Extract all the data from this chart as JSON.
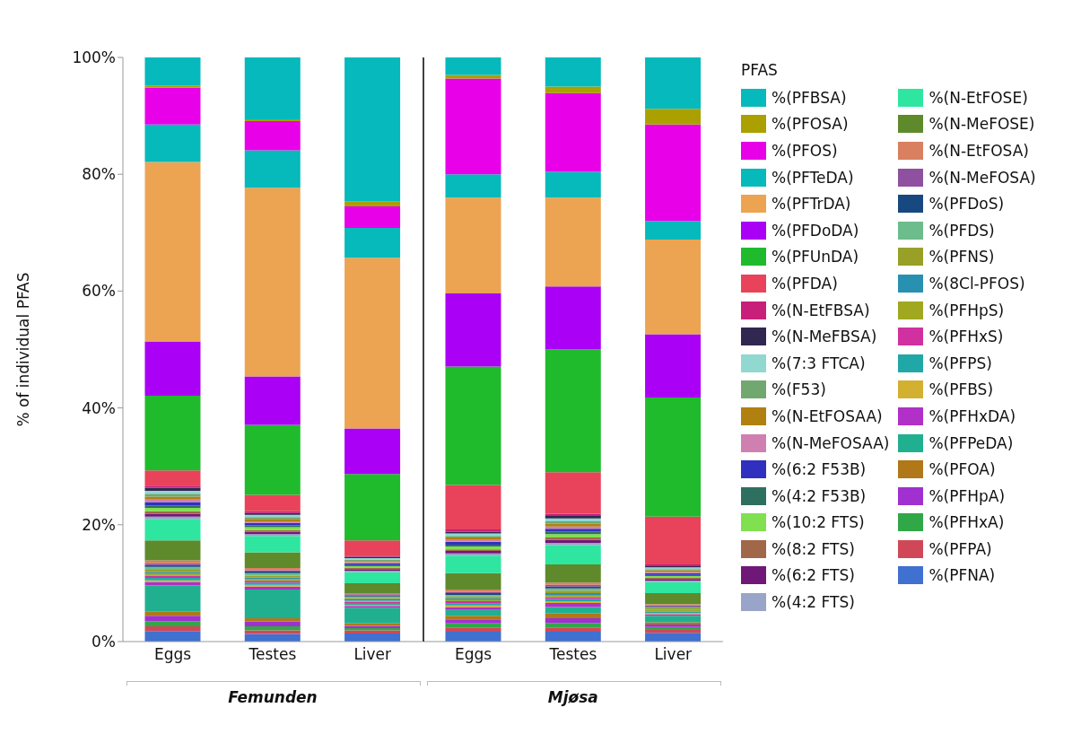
{
  "chart_data": [
    {
      "type": "bar",
      "stacked": true,
      "ylabel": "% of individual PFAS",
      "xlabel": "Femunden",
      "legend_title": "PFAS",
      "legend": "right",
      "categories": [
        "Eggs",
        "Testes",
        "Liver"
      ],
      "ylim": [
        0,
        100
      ],
      "yticks": [
        {
          "value": 0,
          "label": "0%"
        },
        {
          "value": 20,
          "label": "20%"
        },
        {
          "value": 40,
          "label": "40%"
        },
        {
          "value": 60,
          "label": "60%"
        },
        {
          "value": 80,
          "label": "80%"
        },
        {
          "value": 100,
          "label": "100%"
        }
      ],
      "series": [
        {
          "name": "%(PFNA)",
          "color": "#4070d0",
          "values": [
            1.8,
            1.3,
            1.4
          ]
        },
        {
          "name": "%(PFPA)",
          "color": "#d04858",
          "values": [
            0.8,
            0.6,
            0.5
          ]
        },
        {
          "name": "%(PFHxA)",
          "color": "#30a848",
          "values": [
            0.9,
            0.7,
            0.4
          ]
        },
        {
          "name": "%(PFHpA)",
          "color": "#a030d0",
          "values": [
            0.9,
            0.8,
            0.4
          ]
        },
        {
          "name": "%(PFOA)",
          "color": "#b07818",
          "values": [
            0.8,
            0.6,
            0.4
          ]
        },
        {
          "name": "%(PFPeDA)",
          "color": "#20b090",
          "values": [
            4.4,
            4.9,
            2.7
          ]
        },
        {
          "name": "%(PFHxDA)",
          "color": "#b030c8",
          "values": [
            0.6,
            0.5,
            0.3
          ]
        },
        {
          "name": "%(PFBS)",
          "color": "#d4b030",
          "values": [
            0.3,
            0.3,
            0.2
          ]
        },
        {
          "name": "%(PFPS)",
          "color": "#20a8a8",
          "values": [
            0.4,
            0.4,
            0.3
          ]
        },
        {
          "name": "%(PFHxS)",
          "color": "#d030a0",
          "values": [
            0.4,
            0.3,
            0.2
          ]
        },
        {
          "name": "%(PFHpS)",
          "color": "#a0a820",
          "values": [
            0.3,
            0.3,
            0.2
          ]
        },
        {
          "name": "%(8Cl-PFOS)",
          "color": "#2890b0",
          "values": [
            0.3,
            0.3,
            0.2
          ]
        },
        {
          "name": "%(PFNS)",
          "color": "#98a028",
          "values": [
            0.4,
            0.3,
            0.2
          ]
        },
        {
          "name": "%(PFDS)",
          "color": "#6cbc8c",
          "values": [
            0.5,
            0.4,
            0.3
          ]
        },
        {
          "name": "%(PFDoS)",
          "color": "#184880",
          "values": [
            0.3,
            0.3,
            0.2
          ]
        },
        {
          "name": "%(N-MeFOSA)",
          "color": "#9050a0",
          "values": [
            0.3,
            0.2,
            0.2
          ]
        },
        {
          "name": "%(N-EtFOSA)",
          "color": "#d88060",
          "values": [
            0.5,
            0.4,
            0.2
          ]
        },
        {
          "name": "%(N-MeFOSE)",
          "color": "#5e8a2c",
          "values": [
            3.4,
            2.7,
            1.7
          ]
        },
        {
          "name": "%(N-EtFOSE)",
          "color": "#2ee6a0",
          "values": [
            3.7,
            2.8,
            1.9
          ]
        },
        {
          "name": "%(4:2 FTS)",
          "color": "#98a4c8",
          "values": [
            0.4,
            0.3,
            0.2
          ]
        },
        {
          "name": "%(6:2 FTS)",
          "color": "#701878",
          "values": [
            0.5,
            0.4,
            0.3
          ]
        },
        {
          "name": "%(8:2 FTS)",
          "color": "#a06848",
          "values": [
            0.4,
            0.3,
            0.2
          ]
        },
        {
          "name": "%(10:2 FTS)",
          "color": "#80e050",
          "values": [
            0.6,
            0.5,
            0.3
          ]
        },
        {
          "name": "%(4:2 F53B)",
          "color": "#2e7060",
          "values": [
            0.4,
            0.3,
            0.2
          ]
        },
        {
          "name": "%(6:2 F53B)",
          "color": "#3030c0",
          "values": [
            0.6,
            0.4,
            0.3
          ]
        },
        {
          "name": "%(N-MeFOSAA)",
          "color": "#d080b0",
          "values": [
            0.4,
            0.3,
            0.2
          ]
        },
        {
          "name": "%(N-EtFOSAA)",
          "color": "#b08010",
          "values": [
            0.5,
            0.4,
            0.2
          ]
        },
        {
          "name": "%(F53)",
          "color": "#70a870",
          "values": [
            0.5,
            0.3,
            0.2
          ]
        },
        {
          "name": "%(7:3 FTCA)",
          "color": "#90d8d0",
          "values": [
            0.5,
            0.4,
            0.3
          ]
        },
        {
          "name": "%(N-MeFBSA)",
          "color": "#302850",
          "values": [
            0.5,
            0.3,
            0.2
          ]
        },
        {
          "name": "%(N-EtFBSA)",
          "color": "#c8207a",
          "values": [
            0.4,
            0.3,
            0.2
          ]
        },
        {
          "name": "%(PFDA)",
          "color": "#e8435a",
          "values": [
            2.6,
            2.8,
            2.6
          ]
        },
        {
          "name": "%(PFUnDA)",
          "color": "#1fbb2c",
          "values": [
            12.8,
            12.0,
            11.4
          ]
        },
        {
          "name": "%(PFDoDA)",
          "color": "#aa00f5",
          "values": [
            9.3,
            8.3,
            7.8
          ]
        },
        {
          "name": "%(PFTrDA)",
          "color": "#eca453",
          "values": [
            30.7,
            32.3,
            29.2
          ]
        },
        {
          "name": "%(PFTeDA)",
          "color": "#06b9bb",
          "values": [
            6.4,
            6.4,
            5.1
          ]
        },
        {
          "name": "%(PFOS)",
          "color": "#e800e8",
          "values": [
            6.3,
            5.0,
            3.7
          ]
        },
        {
          "name": "%(PFOSA)",
          "color": "#aaa000",
          "values": [
            0.4,
            0.3,
            0.9
          ]
        },
        {
          "name": "%(PFBSA)",
          "color": "#05b9bc",
          "values": [
            4.8,
            10.6,
            24.6
          ]
        }
      ]
    },
    {
      "type": "bar",
      "stacked": true,
      "xlabel": "Mjøsa",
      "tick_labels": "x",
      "categories": [
        "Eggs",
        "Testes",
        "Liver"
      ],
      "ylim": [
        0,
        100
      ],
      "series": [
        {
          "color": "#4070d0",
          "values": [
            1.7,
            1.7,
            1.5
          ]
        },
        {
          "color": "#d04858",
          "values": [
            0.7,
            0.7,
            0.5
          ]
        },
        {
          "color": "#30a848",
          "values": [
            0.7,
            0.8,
            0.5
          ]
        },
        {
          "color": "#a030d0",
          "values": [
            0.7,
            0.8,
            0.4
          ]
        },
        {
          "color": "#b07818",
          "values": [
            0.6,
            0.8,
            0.4
          ]
        },
        {
          "color": "#20b090",
          "values": [
            1.0,
            1.1,
            1.1
          ]
        },
        {
          "color": "#b030c8",
          "values": [
            0.5,
            0.7,
            0.3
          ]
        },
        {
          "color": "#d4b030",
          "values": [
            0.3,
            0.3,
            0.2
          ]
        },
        {
          "color": "#20a8a8",
          "values": [
            0.3,
            0.4,
            0.2
          ]
        },
        {
          "color": "#d030a0",
          "values": [
            0.4,
            0.3,
            0.1
          ]
        },
        {
          "color": "#a0a820",
          "values": [
            0.2,
            0.4,
            0.2
          ]
        },
        {
          "color": "#2890b0",
          "values": [
            0.3,
            0.3,
            0.1
          ]
        },
        {
          "color": "#98a028",
          "values": [
            0.3,
            0.4,
            0.2
          ]
        },
        {
          "color": "#6cbc8c",
          "values": [
            0.3,
            0.4,
            0.2
          ]
        },
        {
          "color": "#184880",
          "values": [
            0.3,
            0.3,
            0.1
          ]
        },
        {
          "color": "#9050a0",
          "values": [
            0.2,
            0.3,
            0.2
          ]
        },
        {
          "color": "#d88060",
          "values": [
            0.4,
            0.4,
            0.2
          ]
        },
        {
          "color": "#5e8a2c",
          "values": [
            2.8,
            3.1,
            1.9
          ]
        },
        {
          "color": "#2ee6a0",
          "values": [
            3.0,
            3.3,
            1.9
          ]
        },
        {
          "color": "#98a4c8",
          "values": [
            0.4,
            0.4,
            0.2
          ]
        },
        {
          "color": "#701878",
          "values": [
            0.4,
            0.5,
            0.3
          ]
        },
        {
          "color": "#a06848",
          "values": [
            0.3,
            0.4,
            0.2
          ]
        },
        {
          "color": "#80e050",
          "values": [
            0.5,
            0.6,
            0.3
          ]
        },
        {
          "color": "#2e7060",
          "values": [
            0.3,
            0.4,
            0.2
          ]
        },
        {
          "color": "#3030c0",
          "values": [
            0.5,
            0.5,
            0.3
          ]
        },
        {
          "color": "#d080b0",
          "values": [
            0.3,
            0.4,
            0.2
          ]
        },
        {
          "color": "#b08010",
          "values": [
            0.4,
            0.5,
            0.3
          ]
        },
        {
          "color": "#70a870",
          "values": [
            0.3,
            0.4,
            0.2
          ]
        },
        {
          "color": "#90d8d0",
          "values": [
            0.4,
            0.5,
            0.3
          ]
        },
        {
          "color": "#302850",
          "values": [
            0.3,
            0.4,
            0.2
          ]
        },
        {
          "color": "#c8207a",
          "values": [
            0.4,
            0.4,
            0.3
          ]
        },
        {
          "color": "#e8435a",
          "values": [
            7.6,
            7.1,
            8.2
          ]
        },
        {
          "color": "#1fbb2c",
          "values": [
            20.3,
            21.0,
            20.4
          ]
        },
        {
          "color": "#aa00f5",
          "values": [
            12.5,
            10.8,
            10.8
          ]
        },
        {
          "color": "#eca453",
          "values": [
            16.4,
            15.2,
            16.2
          ]
        },
        {
          "color": "#06b9bb",
          "values": [
            4.0,
            4.4,
            3.2
          ]
        },
        {
          "color": "#e800e8",
          "values": [
            16.4,
            13.5,
            16.5
          ]
        },
        {
          "color": "#aaa000",
          "values": [
            0.6,
            1.1,
            2.7
          ]
        },
        {
          "color": "#05b9bc",
          "values": [
            3.0,
            5.0,
            8.8
          ]
        }
      ]
    }
  ]
}
